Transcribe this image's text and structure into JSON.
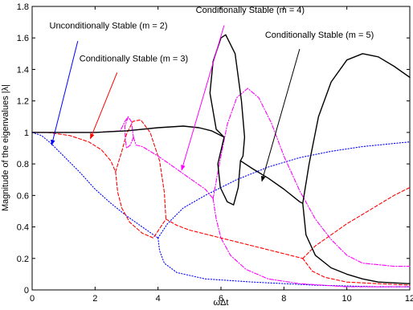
{
  "chart_data": {
    "type": "line",
    "title": "",
    "xlabel": "ωΔt",
    "ylabel": "Magnitude of the eigenvalues |λ|",
    "xlim": [
      0,
      12
    ],
    "ylim": [
      0,
      1.8
    ],
    "xticks": [
      "0",
      "2",
      "4",
      "6",
      "8",
      "10",
      "12"
    ],
    "yticks": [
      "0",
      "0.2",
      "0.4",
      "0.6",
      "0.8",
      "1",
      "1.2",
      "1.4",
      "1.6",
      "1.8"
    ],
    "grid": false,
    "series": [
      {
        "color": "#0000ff",
        "style": "dotted",
        "branches": [
          [
            [
              0,
              1
            ],
            [
              0.3,
              0.98
            ],
            [
              0.6,
              0.93
            ],
            [
              1.0,
              0.85
            ],
            [
              1.5,
              0.75
            ],
            [
              2.0,
              0.64
            ],
            [
              2.5,
              0.55
            ],
            [
              3.0,
              0.47
            ],
            [
              3.5,
              0.4
            ],
            [
              4.0,
              0.33
            ]
          ],
          [
            [
              4.0,
              0.33
            ],
            [
              4.3,
              0.42
            ],
            [
              4.8,
              0.52
            ],
            [
              5.5,
              0.6
            ],
            [
              6.5,
              0.7
            ],
            [
              7.5,
              0.78
            ],
            [
              8.5,
              0.84
            ],
            [
              9.5,
              0.88
            ],
            [
              10.5,
              0.91
            ],
            [
              11.5,
              0.93
            ],
            [
              12,
              0.94
            ]
          ],
          [
            [
              4.0,
              0.33
            ],
            [
              4.05,
              0.25
            ],
            [
              4.2,
              0.17
            ],
            [
              4.6,
              0.11
            ],
            [
              5.5,
              0.07
            ],
            [
              7.0,
              0.05
            ],
            [
              9.0,
              0.03
            ],
            [
              11.0,
              0.02
            ],
            [
              12,
              0.02
            ]
          ]
        ]
      },
      {
        "color": "#ff0000",
        "style": "dashed",
        "branches": [
          [
            [
              0,
              1
            ],
            [
              0.5,
              1.0
            ],
            [
              1.2,
              0.98
            ],
            [
              1.8,
              0.94
            ],
            [
              2.2,
              0.89
            ],
            [
              2.5,
              0.82
            ],
            [
              2.65,
              0.75
            ]
          ],
          [
            [
              2.65,
              0.75
            ],
            [
              2.85,
              0.88
            ],
            [
              3.0,
              0.99
            ],
            [
              3.2,
              1.07
            ],
            [
              3.45,
              1.08
            ],
            [
              3.75,
              1.0
            ],
            [
              4.05,
              0.82
            ],
            [
              4.2,
              0.62
            ],
            [
              4.25,
              0.45
            ]
          ],
          [
            [
              2.65,
              0.75
            ],
            [
              2.72,
              0.62
            ],
            [
              2.85,
              0.52
            ],
            [
              3.1,
              0.43
            ],
            [
              3.5,
              0.36
            ],
            [
              3.85,
              0.33
            ],
            [
              4.25,
              0.45
            ]
          ],
          [
            [
              4.25,
              0.45
            ],
            [
              4.6,
              0.41
            ],
            [
              5.0,
              0.38
            ],
            [
              6.0,
              0.33
            ],
            [
              7.0,
              0.28
            ],
            [
              8.0,
              0.23
            ],
            [
              8.6,
              0.2
            ]
          ],
          [
            [
              8.6,
              0.2
            ],
            [
              9.0,
              0.28
            ],
            [
              9.5,
              0.35
            ],
            [
              10.0,
              0.42
            ],
            [
              10.5,
              0.48
            ],
            [
              11.0,
              0.54
            ],
            [
              11.5,
              0.6
            ],
            [
              12.0,
              0.65
            ]
          ],
          [
            [
              8.6,
              0.2
            ],
            [
              8.9,
              0.12
            ],
            [
              9.3,
              0.08
            ],
            [
              10.0,
              0.05
            ],
            [
              11.0,
              0.04
            ],
            [
              12.0,
              0.03
            ]
          ]
        ]
      },
      {
        "color": "#ff00ff",
        "style": "dashdot",
        "branches": [
          [
            [
              0,
              1
            ],
            [
              1.0,
              1.0
            ],
            [
              2.0,
              1.0
            ],
            [
              2.8,
              1.01
            ],
            [
              2.95,
              1.07
            ],
            [
              3.05,
              1.1
            ],
            [
              3.15,
              1.07
            ],
            [
              3.2,
              1.0
            ],
            [
              3.22,
              0.97
            ]
          ],
          [
            [
              3.22,
              0.97
            ],
            [
              3.12,
              0.92
            ],
            [
              3.0,
              0.9
            ],
            [
              2.96,
              0.96
            ],
            [
              2.95,
              1.04
            ],
            [
              3.05,
              1.1
            ]
          ],
          [
            [
              3.22,
              0.97
            ],
            [
              3.3,
              0.92
            ],
            [
              3.5,
              0.91
            ],
            [
              4.0,
              0.85
            ],
            [
              4.5,
              0.78
            ],
            [
              5.0,
              0.71
            ],
            [
              5.5,
              0.64
            ],
            [
              5.75,
              0.58
            ]
          ],
          [
            [
              5.75,
              0.58
            ],
            [
              5.95,
              0.8
            ],
            [
              6.2,
              1.05
            ],
            [
              6.5,
              1.22
            ],
            [
              6.85,
              1.28
            ],
            [
              7.2,
              1.22
            ],
            [
              7.6,
              1.06
            ],
            [
              8.0,
              0.85
            ],
            [
              8.5,
              0.63
            ],
            [
              9.0,
              0.45
            ],
            [
              9.5,
              0.32
            ],
            [
              10.0,
              0.22
            ],
            [
              10.5,
              0.17
            ],
            [
              11.0,
              0.16
            ],
            [
              11.5,
              0.15
            ],
            [
              12.0,
              0.15
            ]
          ],
          [
            [
              5.75,
              0.58
            ],
            [
              5.85,
              0.45
            ],
            [
              6.0,
              0.33
            ],
            [
              6.3,
              0.22
            ],
            [
              6.8,
              0.13
            ],
            [
              7.5,
              0.07
            ],
            [
              8.5,
              0.04
            ],
            [
              10.0,
              0.02
            ],
            [
              12,
              0.02
            ]
          ]
        ]
      },
      {
        "color": "#000000",
        "style": "solid",
        "branches": [
          [
            [
              0,
              1
            ],
            [
              1.0,
              1.0
            ],
            [
              2.0,
              1.0
            ],
            [
              3.0,
              1.01
            ],
            [
              4.0,
              1.03
            ],
            [
              4.8,
              1.04
            ],
            [
              5.3,
              1.03
            ],
            [
              5.7,
              1.01
            ],
            [
              6.1,
              0.97
            ]
          ],
          [
            [
              6.1,
              0.97
            ],
            [
              5.85,
              1.02
            ],
            [
              5.65,
              1.25
            ],
            [
              5.75,
              1.45
            ],
            [
              6.0,
              1.6
            ],
            [
              6.15,
              1.62
            ],
            [
              6.45,
              1.5
            ],
            [
              6.65,
              1.2
            ],
            [
              6.75,
              0.97
            ],
            [
              6.7,
              0.85
            ],
            [
              6.62,
              0.82
            ]
          ],
          [
            [
              6.1,
              0.97
            ],
            [
              5.9,
              0.8
            ],
            [
              5.98,
              0.65
            ],
            [
              6.2,
              0.56
            ],
            [
              6.4,
              0.54
            ],
            [
              6.55,
              0.65
            ],
            [
              6.62,
              0.82
            ]
          ],
          [
            [
              6.62,
              0.82
            ],
            [
              7.0,
              0.77
            ],
            [
              7.5,
              0.71
            ],
            [
              8.0,
              0.64
            ],
            [
              8.5,
              0.56
            ],
            [
              8.6,
              0.55
            ]
          ],
          [
            [
              8.6,
              0.55
            ],
            [
              8.8,
              0.8
            ],
            [
              9.1,
              1.1
            ],
            [
              9.5,
              1.32
            ],
            [
              10.0,
              1.46
            ],
            [
              10.5,
              1.5
            ],
            [
              11.0,
              1.48
            ],
            [
              11.5,
              1.42
            ],
            [
              12.0,
              1.35
            ]
          ],
          [
            [
              8.6,
              0.55
            ],
            [
              8.7,
              0.35
            ],
            [
              9.0,
              0.22
            ],
            [
              9.5,
              0.14
            ],
            [
              10.0,
              0.1
            ],
            [
              10.5,
              0.07
            ],
            [
              11.0,
              0.05
            ],
            [
              12.0,
              0.04
            ]
          ]
        ]
      }
    ],
    "annotations": [
      {
        "text": "Unconditionally Stable (m = 2)",
        "x": 0.55,
        "y": 1.66,
        "color": "#0000ff",
        "from": [
          1.45,
          1.58
        ],
        "to": [
          0.62,
          0.92
        ]
      },
      {
        "text": "Conditionally Stable (m = 3)",
        "x": 1.5,
        "y": 1.45,
        "color": "#ff0000",
        "from": [
          2.7,
          1.38
        ],
        "to": [
          1.85,
          0.96
        ]
      },
      {
        "text": "Conditionally Stable (m = 4)",
        "x": 5.2,
        "y": 1.76,
        "color": "#ff00ff",
        "from": [
          6.1,
          1.68
        ],
        "to": [
          4.75,
          0.76
        ]
      },
      {
        "text": "Conditionally Stable (m = 5)",
        "x": 7.4,
        "y": 1.6,
        "color": "#000000",
        "from": [
          8.5,
          1.53
        ],
        "to": [
          7.3,
          0.69
        ]
      }
    ]
  }
}
